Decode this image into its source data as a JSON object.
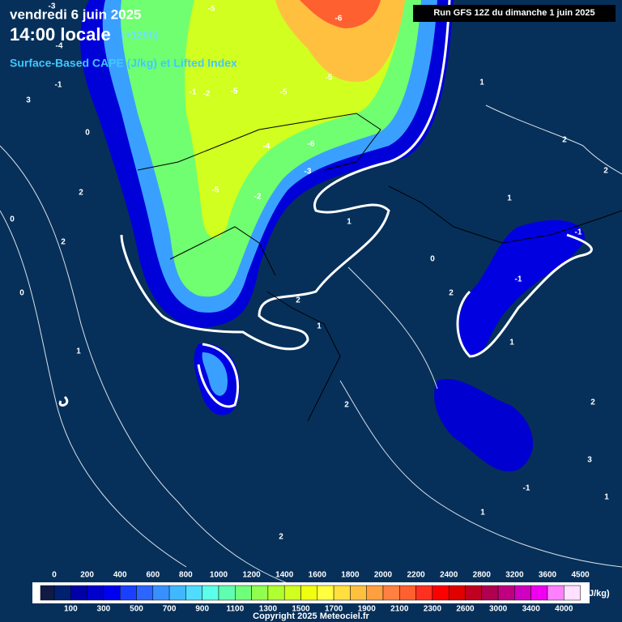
{
  "header": {
    "date": "vendredi 6 juin 2025",
    "time": "14:00 locale",
    "lead": "(+120h)",
    "parameter": "Surface-Based CAPE (J/kg) et Lifted Index",
    "run": "Run GFS 12Z du dimanche 1 juin 2025"
  },
  "contour_labels": [
    "-3",
    "-5",
    "-6",
    "-5",
    "-4",
    "-1",
    "-2",
    "-5",
    "-5",
    "-4",
    "-6",
    "-3",
    "-5",
    "-2",
    "-1",
    "-1",
    "-1",
    "0",
    "0",
    "1",
    "2",
    "2",
    "1",
    "2",
    "3",
    "1",
    "0",
    "2",
    "1",
    "2",
    "1",
    "-1",
    "0",
    "2",
    "1",
    "2",
    "2",
    "3",
    "1",
    "2",
    "1"
  ],
  "colorbar": {
    "labels": [
      0,
      100,
      200,
      300,
      400,
      500,
      600,
      700,
      800,
      900,
      1000,
      1100,
      1200,
      1300,
      1400,
      1500,
      1600,
      1700,
      1800,
      1900,
      2000,
      2100,
      2200,
      2300,
      2400,
      2600,
      2800,
      3000,
      3200,
      3400,
      3600,
      4000,
      4500
    ],
    "colors": [
      "#101a45",
      "#002070",
      "#0000a8",
      "#0000cc",
      "#0000f0",
      "#1a40ff",
      "#2a66ff",
      "#3890ff",
      "#40b8ff",
      "#50dcff",
      "#5cffe8",
      "#60ffb0",
      "#70ff78",
      "#90ff50",
      "#b0ff30",
      "#d0ff20",
      "#f0ff10",
      "#ffff40",
      "#ffe040",
      "#ffc040",
      "#ffa040",
      "#ff8040",
      "#ff6030",
      "#ff3020",
      "#ff0000",
      "#e00000",
      "#c00020",
      "#b00050",
      "#c00080",
      "#d000c0",
      "#f000f0",
      "#ff80ff",
      "#ffe0ff"
    ],
    "unit": "(J/kg)"
  },
  "footer": "Copyright 2025 Meteociel.fr"
}
